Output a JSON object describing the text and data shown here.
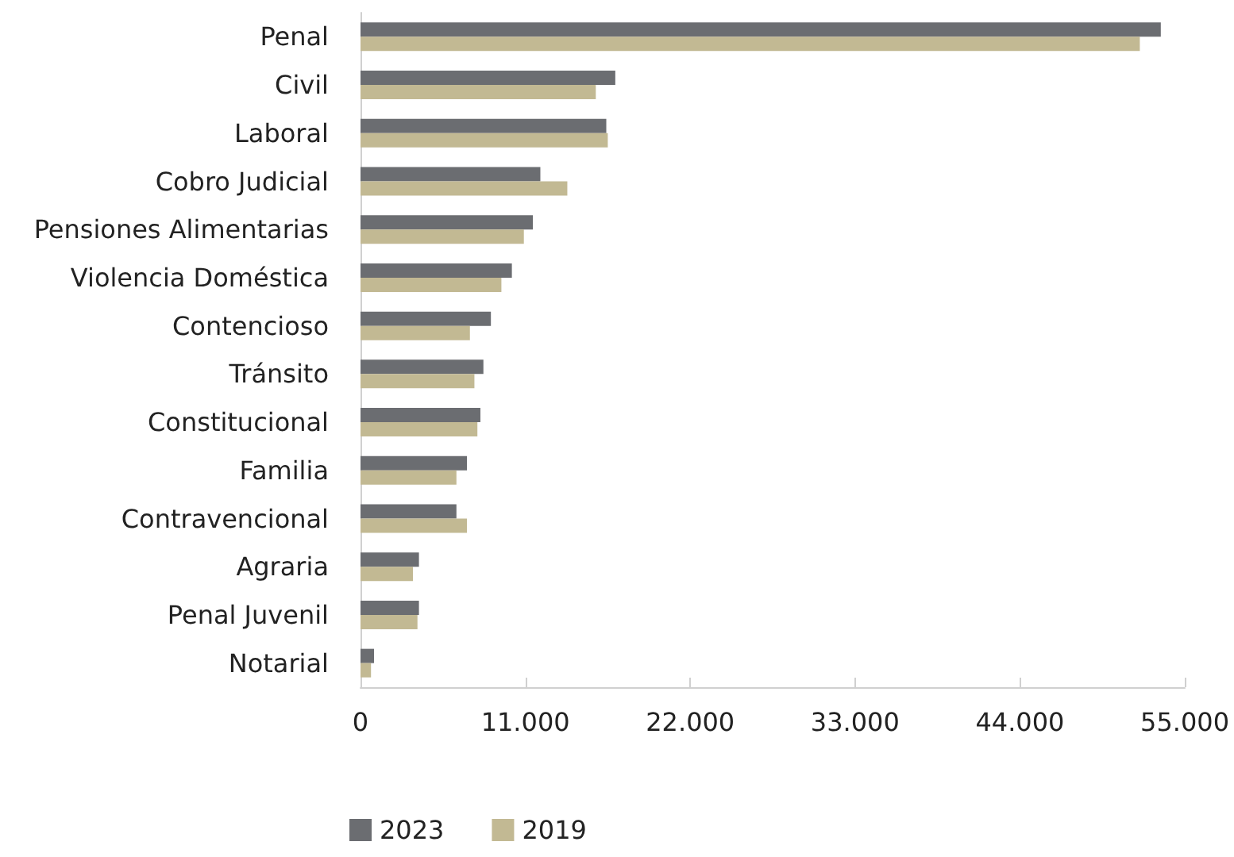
{
  "chart_data": {
    "type": "bar",
    "orientation": "horizontal",
    "categories": [
      "Penal",
      "Civil",
      "Laboral",
      "Cobro Judicial",
      "Pensiones Alimentarias",
      "Violencia Doméstica",
      "Contencioso",
      "Tránsito",
      "Constitucional",
      "Familia",
      "Contravencional",
      "Agraria",
      "Penal Juvenil",
      "Notarial"
    ],
    "series": [
      {
        "name": "2023",
        "color": "#6b6d71",
        "values": [
          53400,
          17000,
          16400,
          12000,
          11500,
          10100,
          8700,
          8200,
          8000,
          7100,
          6400,
          3900,
          3900,
          900
        ]
      },
      {
        "name": "2019",
        "color": "#c2b993",
        "values": [
          52000,
          15700,
          16500,
          13800,
          10900,
          9400,
          7300,
          7600,
          7800,
          6400,
          7100,
          3500,
          3800,
          700
        ]
      }
    ],
    "xlim": [
      0,
      55000
    ],
    "xticks": [
      0,
      {
        "value": 11000,
        "label": "11.000"
      },
      {
        "value": 22000,
        "label": "22.000"
      },
      {
        "value": 33000,
        "label": "33.000"
      },
      {
        "value": 44000,
        "label": "44.000"
      },
      {
        "value": 55000,
        "label": "55.000"
      }
    ],
    "grid": false,
    "legend": "bottom left"
  }
}
